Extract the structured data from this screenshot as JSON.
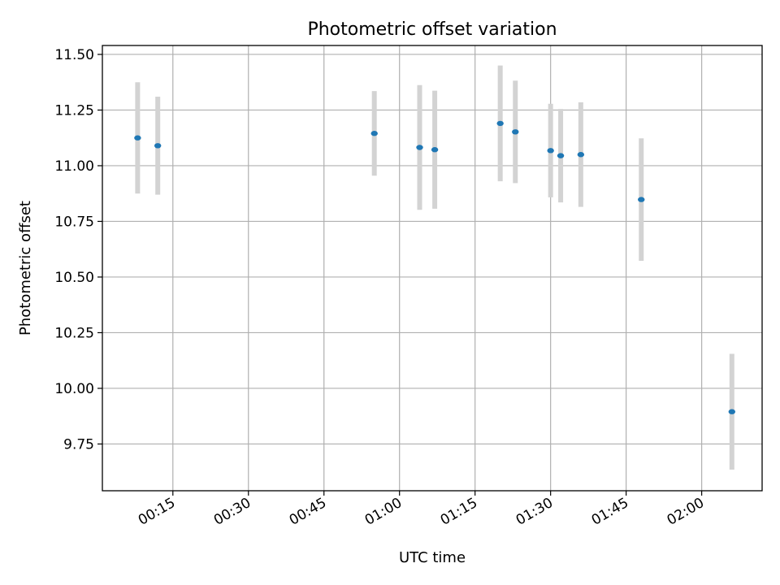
{
  "chart_data": {
    "type": "scatter",
    "title": "Photometric offset variation",
    "xlabel": "UTC time",
    "ylabel": "Photometric offset",
    "x_unit": "HH:MM",
    "xlim": [
      "00:01",
      "02:12"
    ],
    "ylim": [
      9.54,
      11.54
    ],
    "xticks": [
      "00:15",
      "00:30",
      "00:45",
      "01:00",
      "01:15",
      "01:30",
      "01:45",
      "02:00"
    ],
    "yticks": [
      "9.75",
      "10.00",
      "10.25",
      "10.50",
      "10.75",
      "11.00",
      "11.25",
      "11.50"
    ],
    "grid": true,
    "legend": "none",
    "colors": {
      "points": "#1f77b4",
      "errorbars": "#d3d3d3"
    },
    "series": [
      {
        "points": [
          {
            "x": "00:08",
            "y": 11.125,
            "err": 0.25
          },
          {
            "x": "00:12",
            "y": 11.09,
            "err": 0.22
          },
          {
            "x": "00:55",
            "y": 11.145,
            "err": 0.19
          },
          {
            "x": "01:04",
            "y": 11.082,
            "err": 0.28
          },
          {
            "x": "01:07",
            "y": 11.072,
            "err": 0.265
          },
          {
            "x": "01:20",
            "y": 11.19,
            "err": 0.26
          },
          {
            "x": "01:23",
            "y": 11.152,
            "err": 0.23
          },
          {
            "x": "01:30",
            "y": 11.068,
            "err": 0.21
          },
          {
            "x": "01:32",
            "y": 11.045,
            "err": 0.21
          },
          {
            "x": "01:36",
            "y": 11.05,
            "err": 0.235
          },
          {
            "x": "01:48",
            "y": 10.848,
            "err": 0.275
          },
          {
            "x": "02:06",
            "y": 9.895,
            "err": 0.26
          }
        ]
      }
    ]
  }
}
